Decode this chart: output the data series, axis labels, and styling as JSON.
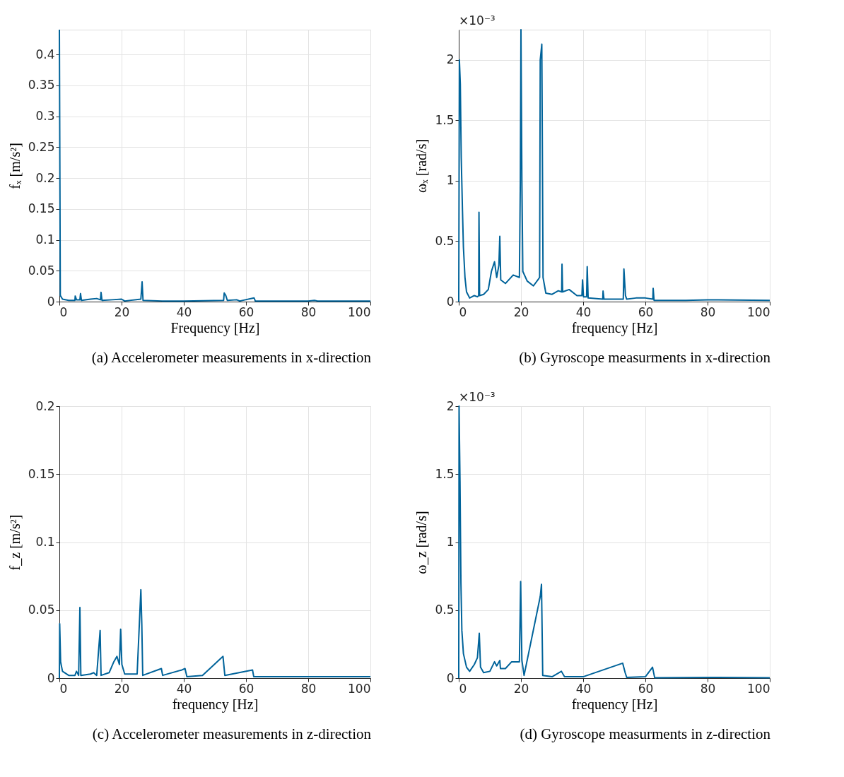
{
  "chart_data": [
    {
      "type": "line",
      "title": "(a) Accelerometer measurements in x-direction",
      "xlabel": "Frequency [Hz]",
      "ylabel": "fₓ [m/s²]",
      "xlim": [
        0,
        100
      ],
      "xticks": [
        0,
        20,
        40,
        60,
        80,
        100
      ],
      "ylim": [
        0,
        0.44
      ],
      "yticks": [
        0,
        0.05,
        0.1,
        0.15,
        0.2,
        0.25,
        0.3,
        0.35,
        0.4
      ],
      "grid": true,
      "series": [
        {
          "color": "#00639a",
          "x": [
            0,
            0.3,
            1,
            3,
            5,
            5.1,
            5.5,
            6.6,
            6.8,
            7.1,
            10,
            12,
            13.2,
            13.4,
            13.7,
            17,
            20,
            21,
            26.2,
            26.6,
            26.9,
            33,
            40,
            52.8,
            53,
            53.5,
            54,
            57,
            58,
            62.6,
            63,
            80,
            82,
            83,
            100
          ],
          "values": [
            0.44,
            0.01,
            0.004,
            0.002,
            0.002,
            0.009,
            0.003,
            0.003,
            0.013,
            0.002,
            0.004,
            0.005,
            0.003,
            0.015,
            0.002,
            0.003,
            0.004,
            0.001,
            0.004,
            0.032,
            0.002,
            0.001,
            0.001,
            0.002,
            0.014,
            0.01,
            0.002,
            0.003,
            0.001,
            0.006,
            0.001,
            0.001,
            0.002,
            0.001,
            0.001
          ]
        }
      ]
    },
    {
      "type": "line",
      "title": "(b) Gyroscope measurments in x-direction",
      "xlabel": "frequency [Hz]",
      "ylabel": "ωₓ [rad/s]",
      "annotations": [
        "×10⁻³"
      ],
      "xlim": [
        0,
        100
      ],
      "xticks": [
        0,
        20,
        40,
        60,
        80,
        100
      ],
      "ylim": [
        0,
        2.25
      ],
      "yticks": [
        0,
        0.5,
        1,
        1.5,
        2
      ],
      "grid": true,
      "series": [
        {
          "color": "#00639a",
          "x": [
            0,
            0.2,
            0.5,
            0.8,
            1.2,
            1.5,
            2,
            2.5,
            3.5,
            5,
            6,
            6.4,
            6.5,
            6.7,
            8,
            9.5,
            10.5,
            11.5,
            12.2,
            12.9,
            13.2,
            13.5,
            15,
            17.5,
            19.5,
            19.8,
            20,
            20.3,
            20.6,
            22,
            24,
            26,
            26.2,
            26.7,
            27.1,
            28,
            30,
            32,
            33.1,
            33.2,
            33.4,
            35.5,
            38,
            39.6,
            39.8,
            40.1,
            41.1,
            41.3,
            41.6,
            46.3,
            46.4,
            46.7,
            52.9,
            53.1,
            53.6,
            54,
            57,
            60,
            62.4,
            62.5,
            62.8,
            73,
            80,
            100
          ],
          "values": [
            0,
            2.0,
            1.8,
            1.19,
            0.75,
            0.45,
            0.2,
            0.08,
            0.03,
            0.05,
            0.04,
            0.05,
            0.74,
            0.05,
            0.06,
            0.1,
            0.25,
            0.33,
            0.2,
            0.3,
            0.54,
            0.18,
            0.15,
            0.22,
            0.2,
            1.0,
            2.25,
            1.0,
            0.25,
            0.17,
            0.13,
            0.2,
            2.0,
            2.13,
            0.2,
            0.07,
            0.06,
            0.09,
            0.08,
            0.31,
            0.08,
            0.1,
            0.05,
            0.05,
            0.18,
            0.04,
            0.04,
            0.29,
            0.03,
            0.02,
            0.087,
            0.02,
            0.02,
            0.27,
            0.05,
            0.02,
            0.03,
            0.03,
            0.02,
            0.11,
            0.01,
            0.01,
            0.015,
            0.01
          ]
        }
      ]
    },
    {
      "type": "line",
      "title": "(c) Accelerometer measurements in z-direction",
      "xlabel": "frequency [Hz]",
      "ylabel": "f_z [m/s²]",
      "xlim": [
        0,
        100
      ],
      "xticks": [
        0,
        20,
        40,
        60,
        80,
        100
      ],
      "ylim": [
        0,
        0.2
      ],
      "yticks": [
        0,
        0.05,
        0.1,
        0.15,
        0.2
      ],
      "grid": true,
      "series": [
        {
          "color": "#00639a",
          "x": [
            0,
            0.1,
            0.4,
            1,
            3,
            5,
            5.5,
            6.2,
            6.6,
            6.9,
            10,
            11,
            12,
            13.1,
            13.4,
            16,
            17.5,
            18.5,
            19.3,
            19.7,
            20.1,
            21,
            25,
            26.2,
            26.5,
            26.8,
            32.8,
            33.2,
            39.4,
            40.4,
            41,
            46,
            52.6,
            53.2,
            62.1,
            62.5,
            79,
            100
          ],
          "values": [
            0,
            0.04,
            0.012,
            0.005,
            0.002,
            0.002,
            0.005,
            0.002,
            0.052,
            0.002,
            0.003,
            0.004,
            0.002,
            0.035,
            0.002,
            0.004,
            0.012,
            0.016,
            0.01,
            0.036,
            0.01,
            0.003,
            0.003,
            0.065,
            0.04,
            0.002,
            0.007,
            0.002,
            0.006,
            0.007,
            0.001,
            0.002,
            0.016,
            0.002,
            0.006,
            0.001,
            0.001,
            0.001
          ]
        }
      ]
    },
    {
      "type": "line",
      "title": "(d) Gyroscope measurments in z-direction",
      "xlabel": "frequency [Hz]",
      "ylabel": "ω_z [rad/s]",
      "annotations": [
        "×10⁻³"
      ],
      "xlim": [
        0,
        100
      ],
      "xticks": [
        0,
        20,
        40,
        60,
        80,
        100
      ],
      "ylim": [
        0,
        2
      ],
      "yticks": [
        0,
        0.5,
        1,
        1.5,
        2
      ],
      "grid": true,
      "series": [
        {
          "color": "#00639a",
          "x": [
            0,
            0.1,
            0.4,
            0.7,
            1,
            1.5,
            2.5,
            3.5,
            5,
            6,
            6.6,
            7,
            8,
            10,
            11.5,
            12.2,
            13.2,
            13.4,
            15,
            17,
            19.5,
            19.9,
            20.3,
            21,
            26.2,
            26.6,
            27,
            30,
            33,
            34,
            40,
            52.7,
            53.5,
            54,
            60,
            62.3,
            63,
            82,
            100
          ],
          "values": [
            0,
            2.0,
            1.45,
            0.7,
            0.35,
            0.18,
            0.08,
            0.05,
            0.1,
            0.15,
            0.33,
            0.08,
            0.04,
            0.05,
            0.12,
            0.09,
            0.13,
            0.07,
            0.07,
            0.12,
            0.12,
            0.71,
            0.13,
            0.02,
            0.6,
            0.69,
            0.02,
            0.01,
            0.05,
            0.01,
            0.01,
            0.11,
            0.04,
            0.005,
            0.01,
            0.08,
            0.002,
            0.005,
            0.002
          ]
        }
      ]
    }
  ]
}
